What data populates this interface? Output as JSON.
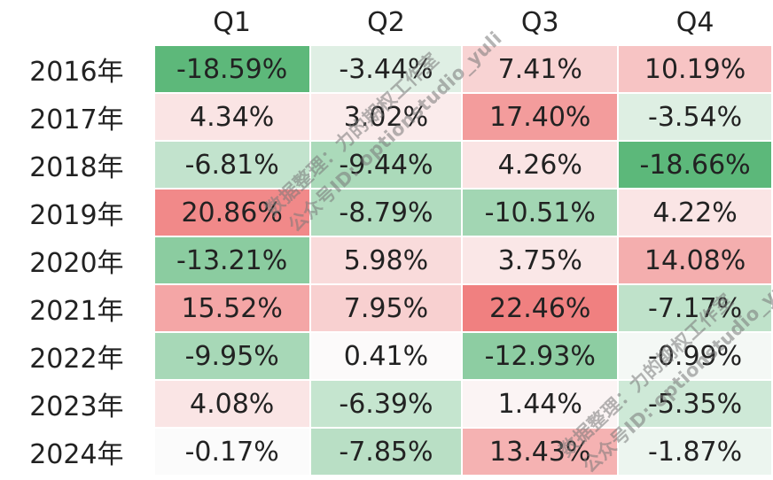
{
  "chart_data": {
    "type": "heatmap",
    "columns": [
      "Q1",
      "Q2",
      "Q3",
      "Q4"
    ],
    "rows": [
      "2016年",
      "2017年",
      "2018年",
      "2019年",
      "2020年",
      "2021年",
      "2022年",
      "2023年",
      "2024年"
    ],
    "values": [
      [
        -18.59,
        -3.44,
        7.41,
        10.19
      ],
      [
        4.34,
        3.02,
        17.4,
        -3.54
      ],
      [
        -6.81,
        -9.44,
        4.26,
        -18.66
      ],
      [
        20.86,
        -8.79,
        -10.51,
        4.22
      ],
      [
        -13.21,
        5.98,
        3.75,
        14.08
      ],
      [
        15.52,
        7.95,
        22.46,
        -7.17
      ],
      [
        -9.95,
        0.41,
        -12.93,
        -0.99
      ],
      [
        4.08,
        -6.39,
        1.44,
        -5.35
      ],
      [
        -0.17,
        -7.85,
        13.43,
        -1.87
      ]
    ],
    "labels": [
      [
        "-18.59%",
        "-3.44%",
        "7.41%",
        "10.19%"
      ],
      [
        "4.34%",
        "3.02%",
        "17.40%",
        "-3.54%"
      ],
      [
        "-6.81%",
        "-9.44%",
        "4.26%",
        "-18.66%"
      ],
      [
        "20.86%",
        "-8.79%",
        "-10.51%",
        "4.22%"
      ],
      [
        "-13.21%",
        "5.98%",
        "3.75%",
        "14.08%"
      ],
      [
        "15.52%",
        "7.95%",
        "22.46%",
        "-7.17%"
      ],
      [
        "-9.95%",
        "0.41%",
        "-12.93%",
        "-0.99%"
      ],
      [
        "4.08%",
        "-6.39%",
        "1.44%",
        "-5.35%"
      ],
      [
        "-0.17%",
        "-7.85%",
        "13.43%",
        "-1.87%"
      ]
    ],
    "colors": {
      "positive_max": "#f08080",
      "negative_max": "#5cb87a",
      "neutral": "#fcfcfc"
    }
  },
  "watermark": {
    "line1": "数据整理：力的期权工作室",
    "line2": "公众号ID: optionstudio_yuli"
  }
}
